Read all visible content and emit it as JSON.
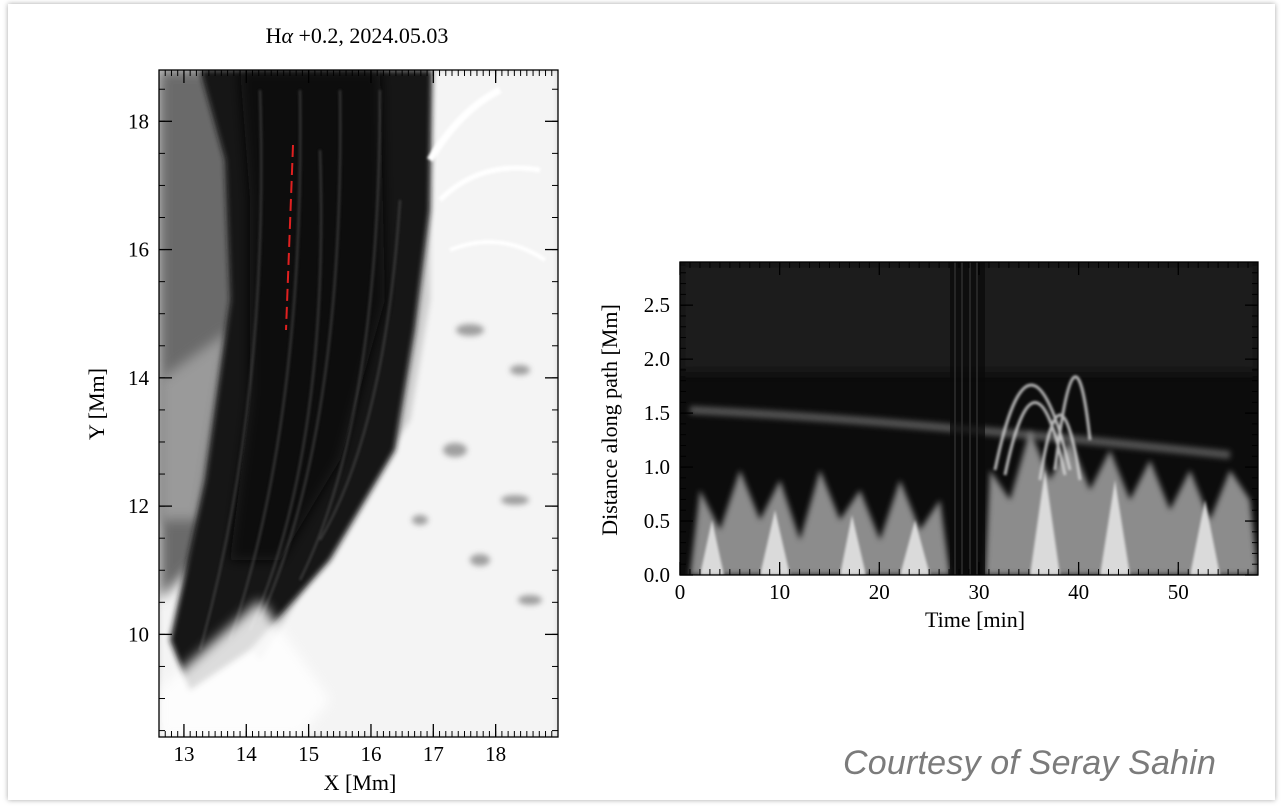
{
  "left_panel": {
    "title": "Hα +0.2, 2024.05.03",
    "title_prefix": "H",
    "title_greek": "α",
    "title_suffix": " +0.2, 2024.05.03",
    "xlabel": "X [Mm]",
    "ylabel": "Y [Mm]",
    "x_ticks": [
      "13",
      "14",
      "15",
      "16",
      "17",
      "18"
    ],
    "y_ticks": [
      "10",
      "12",
      "14",
      "16",
      "18"
    ],
    "xlim": [
      12.6,
      19.0
    ],
    "ylim": [
      8.4,
      18.8
    ],
    "path_color": "#e02020"
  },
  "right_panel": {
    "xlabel": "Time [min]",
    "ylabel": "Distance along path [Mm]",
    "x_ticks": [
      "0",
      "10",
      "20",
      "30",
      "40",
      "50"
    ],
    "y_ticks": [
      "0.0",
      "0.5",
      "1.0",
      "1.5",
      "2.0",
      "2.5"
    ],
    "xlim": [
      0,
      58
    ],
    "ylim": [
      0,
      2.9
    ]
  },
  "courtesy": "Courtesy of Seray Sahin"
}
